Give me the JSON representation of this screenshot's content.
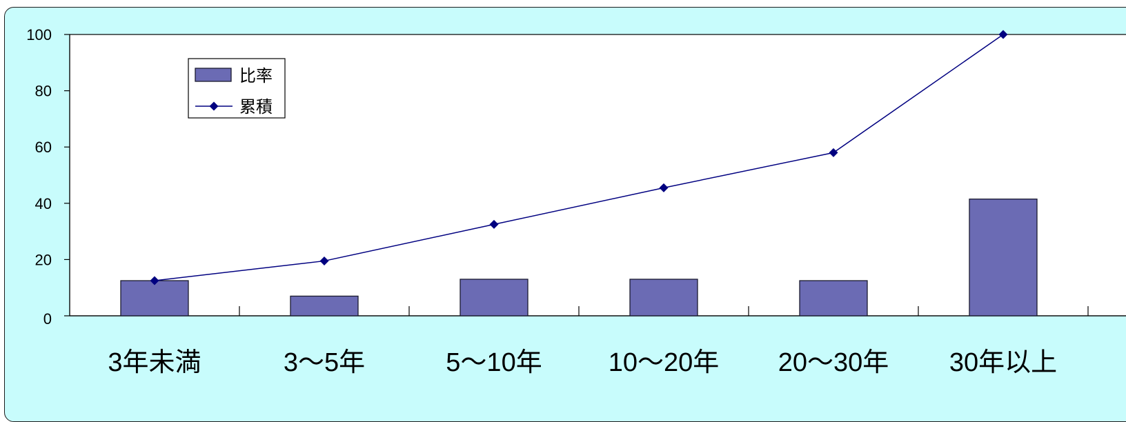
{
  "chart_data": {
    "type": "bar",
    "categories": [
      "3年未満",
      "3〜5年",
      "5〜10年",
      "10〜20年",
      "20〜30年",
      "30年以上"
    ],
    "series": [
      {
        "name": "比率",
        "type": "bar",
        "values": [
          12.5,
          7,
          13,
          13,
          12.5,
          41.5
        ]
      },
      {
        "name": "累積",
        "type": "line",
        "values": [
          12.5,
          19.5,
          32.5,
          45.5,
          58,
          100
        ]
      }
    ],
    "title": "",
    "xlabel": "",
    "ylabel": "",
    "ylim": [
      0,
      100
    ],
    "yticks": [
      0,
      20,
      40,
      60,
      80,
      100
    ],
    "grid": false,
    "legend": {
      "placement": "top-left",
      "entries": [
        "比率",
        "累積"
      ]
    },
    "colors": {
      "bar_fill": "#6b6bb4",
      "bar_stroke": "#1a1a2e",
      "line": "#000080",
      "marker": "#000080",
      "chart_background": "#c8fcfc",
      "plot_background": "#ffffff"
    }
  }
}
